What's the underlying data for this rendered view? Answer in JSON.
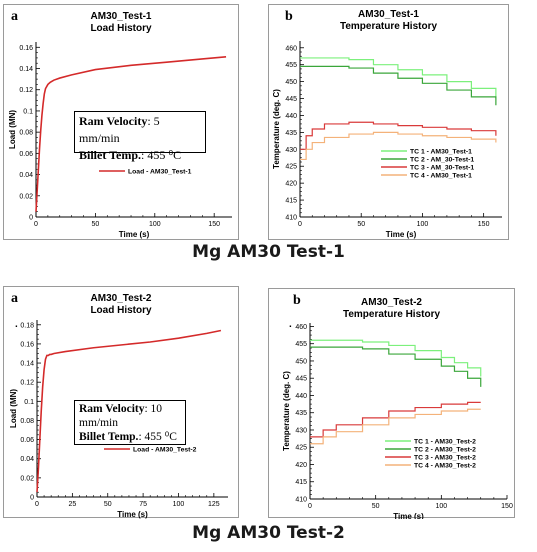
{
  "headings": {
    "test1": "Mg AM30 Test-1",
    "test2": "Mg AM30 Test-2"
  },
  "panels": {
    "p1a": {
      "letter": "a",
      "title1": "AM30_Test-1",
      "title2": "Load History",
      "info": {
        "vel_label": "Ram Velocity",
        "vel_value": ": 5 mm/min",
        "temp_label": "Billet Temp.",
        "temp_value": ": 455 ⁰C"
      }
    },
    "p1b": {
      "letter": "b",
      "title1": "AM30_Test-1",
      "title2": "Temperature History"
    },
    "p2a": {
      "letter": "a",
      "title1": "AM30_Test-2",
      "title2": "Load History",
      "info": {
        "vel_label": "Ram Velocity",
        "vel_value": ": 10 mm/min",
        "temp_label": "Billet Temp.",
        "temp_value": ": 455 ⁰C"
      }
    },
    "p2b": {
      "letter": "b",
      "title1": "AM30_Test-2",
      "title2": "Temperature History"
    }
  },
  "chart_data": [
    {
      "id": "p1a",
      "type": "line",
      "title": "AM30_Test-1 Load History",
      "xlabel": "Time (s)",
      "ylabel": "Load (MN)",
      "xlim": [
        0,
        165
      ],
      "ylim": [
        0,
        0.165
      ],
      "xticks": [
        0,
        50,
        100,
        150
      ],
      "yticks": [
        0,
        0.02,
        0.04,
        0.06,
        0.08,
        0.1,
        0.12,
        0.14,
        0.16
      ],
      "legend_position": "center-right",
      "series": [
        {
          "name": "Load - AM30_Test-1",
          "color": "#d42a2a",
          "x": [
            0,
            1,
            2,
            3,
            4,
            5,
            6,
            7,
            8,
            10,
            12,
            15,
            20,
            30,
            50,
            80,
            110,
            140,
            160
          ],
          "y": [
            0.005,
            0.025,
            0.045,
            0.065,
            0.082,
            0.096,
            0.107,
            0.116,
            0.121,
            0.125,
            0.127,
            0.129,
            0.131,
            0.134,
            0.139,
            0.143,
            0.146,
            0.149,
            0.151
          ]
        }
      ]
    },
    {
      "id": "p1b",
      "type": "line",
      "title": "AM30_Test-1 Temperature History",
      "xlabel": "Time (s)",
      "ylabel": "Temperature (deg. C)",
      "xlim": [
        0,
        165
      ],
      "ylim": [
        410,
        462
      ],
      "xticks": [
        0,
        50,
        100,
        150
      ],
      "yticks": [
        410,
        415,
        420,
        425,
        430,
        435,
        440,
        445,
        450,
        455,
        460
      ],
      "legend_position": "bottom-right",
      "series": [
        {
          "name": "TC 1 - AM30_Test-1",
          "color": "#7cf07c",
          "x": [
            0,
            20,
            40,
            60,
            80,
            100,
            120,
            140,
            160
          ],
          "y": [
            457,
            457,
            456.5,
            455,
            453.5,
            452,
            450,
            448,
            445
          ]
        },
        {
          "name": "TC 2 - AM_30-Test-1",
          "color": "#3aa63a",
          "x": [
            0,
            20,
            40,
            60,
            80,
            100,
            120,
            140,
            160
          ],
          "y": [
            454.5,
            454.5,
            454,
            452.5,
            451,
            449.5,
            447.5,
            445.5,
            443
          ]
        },
        {
          "name": "TC 3 - AM_30-Test-1",
          "color": "#d93a3a",
          "x": [
            0,
            5,
            10,
            20,
            40,
            60,
            80,
            100,
            120,
            140,
            160
          ],
          "y": [
            430,
            434,
            436,
            437.5,
            438,
            437.5,
            437,
            436.5,
            436,
            435.5,
            434
          ]
        },
        {
          "name": "TC 4 - AM30_Test-1",
          "color": "#f4b27a",
          "x": [
            0,
            5,
            10,
            20,
            40,
            60,
            80,
            100,
            120,
            140,
            160
          ],
          "y": [
            427,
            430,
            432,
            433.5,
            434.5,
            435,
            434.5,
            434,
            433.5,
            433,
            432
          ]
        }
      ]
    },
    {
      "id": "p2a",
      "type": "line",
      "title": "AM30_Test-2 Load History",
      "xlabel": "Time (s)",
      "ylabel": "Load (MN)",
      "xlim": [
        0,
        135
      ],
      "ylim": [
        0,
        0.185
      ],
      "xticks": [
        0,
        25,
        50,
        75,
        100,
        125
      ],
      "yticks": [
        0,
        0.02,
        0.04,
        0.06,
        0.08,
        0.1,
        0.12,
        0.14,
        0.16,
        0.18
      ],
      "legend_position": "center-right",
      "series": [
        {
          "name": "Load - AM30_Test-2",
          "color": "#d42a2a",
          "x": [
            0,
            1,
            2,
            3,
            4,
            5,
            6,
            7,
            8,
            9,
            10,
            12,
            20,
            40,
            60,
            80,
            100,
            120,
            130
          ],
          "y": [
            0.005,
            0.03,
            0.06,
            0.09,
            0.115,
            0.133,
            0.144,
            0.148,
            0.148,
            0.149,
            0.149,
            0.15,
            0.152,
            0.156,
            0.159,
            0.162,
            0.166,
            0.171,
            0.174
          ]
        }
      ]
    },
    {
      "id": "p2b",
      "type": "line",
      "title": "AM30_Test-2 Temperature History",
      "xlabel": "Time (s)",
      "ylabel": "Temperature (deg. C)",
      "xlim": [
        0,
        150
      ],
      "ylim": [
        410,
        461
      ],
      "xticks": [
        0,
        50,
        100,
        150
      ],
      "yticks": [
        410,
        415,
        420,
        425,
        430,
        435,
        440,
        445,
        450,
        455,
        460
      ],
      "legend_position": "bottom-right",
      "series": [
        {
          "name": "TC 1 - AM30_Test-2",
          "color": "#7cf07c",
          "x": [
            0,
            20,
            40,
            60,
            80,
            100,
            110,
            120,
            130
          ],
          "y": [
            456,
            456,
            455.5,
            454.5,
            453,
            451,
            449.5,
            448,
            445.5
          ]
        },
        {
          "name": "TC 2 - AM30_Test-2",
          "color": "#3aa63a",
          "x": [
            0,
            20,
            40,
            60,
            80,
            100,
            110,
            120,
            130
          ],
          "y": [
            454,
            454,
            453.5,
            452,
            450.5,
            448.5,
            447,
            445,
            442.5
          ]
        },
        {
          "name": "TC 3 - AM30_Test-2",
          "color": "#d93a3a",
          "x": [
            0,
            10,
            20,
            40,
            60,
            80,
            100,
            120,
            130
          ],
          "y": [
            428,
            430,
            431.5,
            433.5,
            435.5,
            436.5,
            437.5,
            438,
            438
          ]
        },
        {
          "name": "TC 4 - AM30_Test-2",
          "color": "#f4b27a",
          "x": [
            0,
            10,
            20,
            40,
            60,
            80,
            100,
            120,
            130
          ],
          "y": [
            426,
            428,
            429.5,
            431.5,
            433.5,
            434.5,
            435.5,
            436,
            436
          ]
        }
      ]
    }
  ]
}
